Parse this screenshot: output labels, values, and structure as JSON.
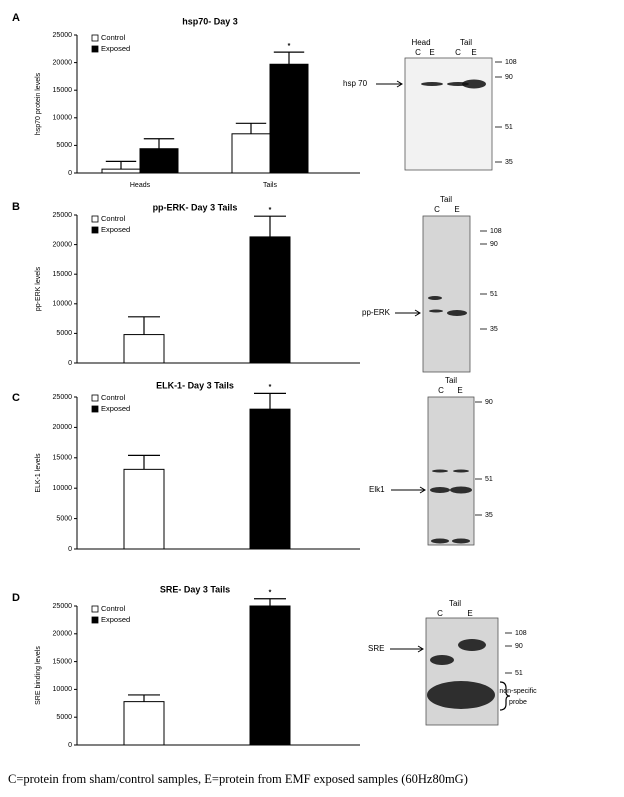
{
  "chart_data": [
    {
      "type": "bar",
      "panel": "A",
      "title": "hsp70- Day 3",
      "ylabel": "hsp70 protein levels",
      "categories": [
        "Heads",
        "Tails"
      ],
      "series": [
        {
          "name": "Control",
          "color": "#ffffff",
          "values": [
            700,
            7100
          ],
          "errors": [
            1400,
            1900
          ]
        },
        {
          "name": "Exposed",
          "color": "#000000",
          "values": [
            4400,
            19700
          ],
          "errors": [
            1800,
            2200
          ]
        }
      ],
      "ylim": [
        0,
        25000
      ],
      "yticks": [
        0,
        5000,
        10000,
        15000,
        20000,
        25000
      ],
      "annotation": "*"
    },
    {
      "type": "bar",
      "panel": "B",
      "title": "pp-ERK- Day 3 Tails",
      "ylabel": "pp-ERK levels",
      "categories": [
        null
      ],
      "series": [
        {
          "name": "Control",
          "color": "#ffffff",
          "values": [
            4800
          ],
          "errors": [
            3000
          ]
        },
        {
          "name": "Exposed",
          "color": "#000000",
          "values": [
            21300
          ],
          "errors": [
            3500
          ]
        }
      ],
      "ylim": [
        0,
        25000
      ],
      "yticks": [
        0,
        5000,
        10000,
        15000,
        20000,
        25000
      ],
      "annotation": "*"
    },
    {
      "type": "bar",
      "panel": "C",
      "title": "ELK-1- Day 3 Tails",
      "ylabel": "ELK-1 levels",
      "categories": [
        null
      ],
      "series": [
        {
          "name": "Control",
          "color": "#ffffff",
          "values": [
            13100
          ],
          "errors": [
            2300
          ]
        },
        {
          "name": "Exposed",
          "color": "#000000",
          "values": [
            23000
          ],
          "errors": [
            2600
          ]
        }
      ],
      "ylim": [
        0,
        25000
      ],
      "yticks": [
        0,
        5000,
        10000,
        15000,
        20000,
        25000
      ],
      "annotation": "*"
    },
    {
      "type": "bar",
      "panel": "D",
      "title": "SRE- Day 3 Tails",
      "ylabel": "SRE binding levels",
      "categories": [
        null
      ],
      "series": [
        {
          "name": "Control",
          "color": "#ffffff",
          "values": [
            7800
          ],
          "errors": [
            1200
          ]
        },
        {
          "name": "Exposed",
          "color": "#000000",
          "values": [
            25000
          ],
          "errors": [
            1300
          ]
        }
      ],
      "ylim": [
        0,
        25000
      ],
      "yticks": [
        0,
        5000,
        10000,
        15000,
        20000,
        25000
      ],
      "annotation": "*"
    }
  ],
  "blots": [
    {
      "headers": [
        "Head",
        "Tail"
      ],
      "lanes": [
        "C",
        "E",
        "C",
        "E"
      ],
      "band_label": "hsp 70",
      "markers": [
        108,
        90,
        51,
        35
      ]
    },
    {
      "headers": [
        "Tail"
      ],
      "lanes": [
        "C",
        "E"
      ],
      "band_label": "pp-ERK",
      "markers": [
        108,
        90,
        51,
        35
      ]
    },
    {
      "headers": [
        "Tail"
      ],
      "lanes": [
        "C",
        "E"
      ],
      "band_label": "Elk1",
      "markers": [
        90,
        51,
        35
      ]
    },
    {
      "headers": [
        "Tail"
      ],
      "lanes": [
        "C",
        "E"
      ],
      "band_label": "SRE",
      "markers": [
        108,
        90,
        51
      ],
      "note": [
        "non-specific",
        "probe"
      ]
    }
  ],
  "caption": "C=protein from sham/control samples, E=protein from EMF exposed samples (60Hz80mG)"
}
